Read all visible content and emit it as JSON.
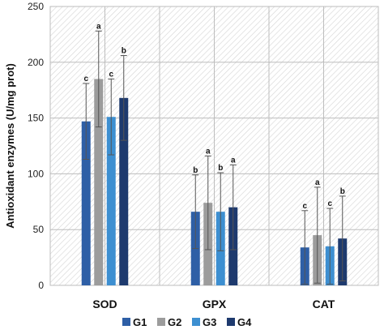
{
  "chart_data": {
    "type": "bar",
    "ylabel": "Antioxidant enzymes (U/mg prot)",
    "xlabel": "",
    "ylim": [
      0,
      250
    ],
    "yticks": [
      "0",
      "50",
      "100",
      "150",
      "200",
      "250"
    ],
    "categories": [
      "SOD",
      "GPX",
      "CAT"
    ],
    "legend_position": "bottom",
    "grid": "hatched panels",
    "series": [
      {
        "name": "G1",
        "color": "#2e5fa6",
        "values": [
          147,
          66,
          34
        ],
        "errors": [
          34,
          33,
          33
        ],
        "labels": [
          "c",
          "b",
          "c"
        ]
      },
      {
        "name": "G2",
        "color": "#9c9c9c",
        "values": [
          185,
          74,
          45
        ],
        "errors": [
          43,
          42,
          43
        ],
        "labels": [
          "a",
          "a",
          "a"
        ]
      },
      {
        "name": "G3",
        "color": "#3d8fd1",
        "values": [
          151,
          66,
          35
        ],
        "errors": [
          34,
          35,
          34
        ],
        "labels": [
          "c",
          "b",
          "c"
        ]
      },
      {
        "name": "G4",
        "color": "#1e3a6e",
        "values": [
          168,
          70,
          42
        ],
        "errors": [
          38,
          38,
          38
        ],
        "labels": [
          "b",
          "a",
          "b"
        ]
      }
    ]
  }
}
